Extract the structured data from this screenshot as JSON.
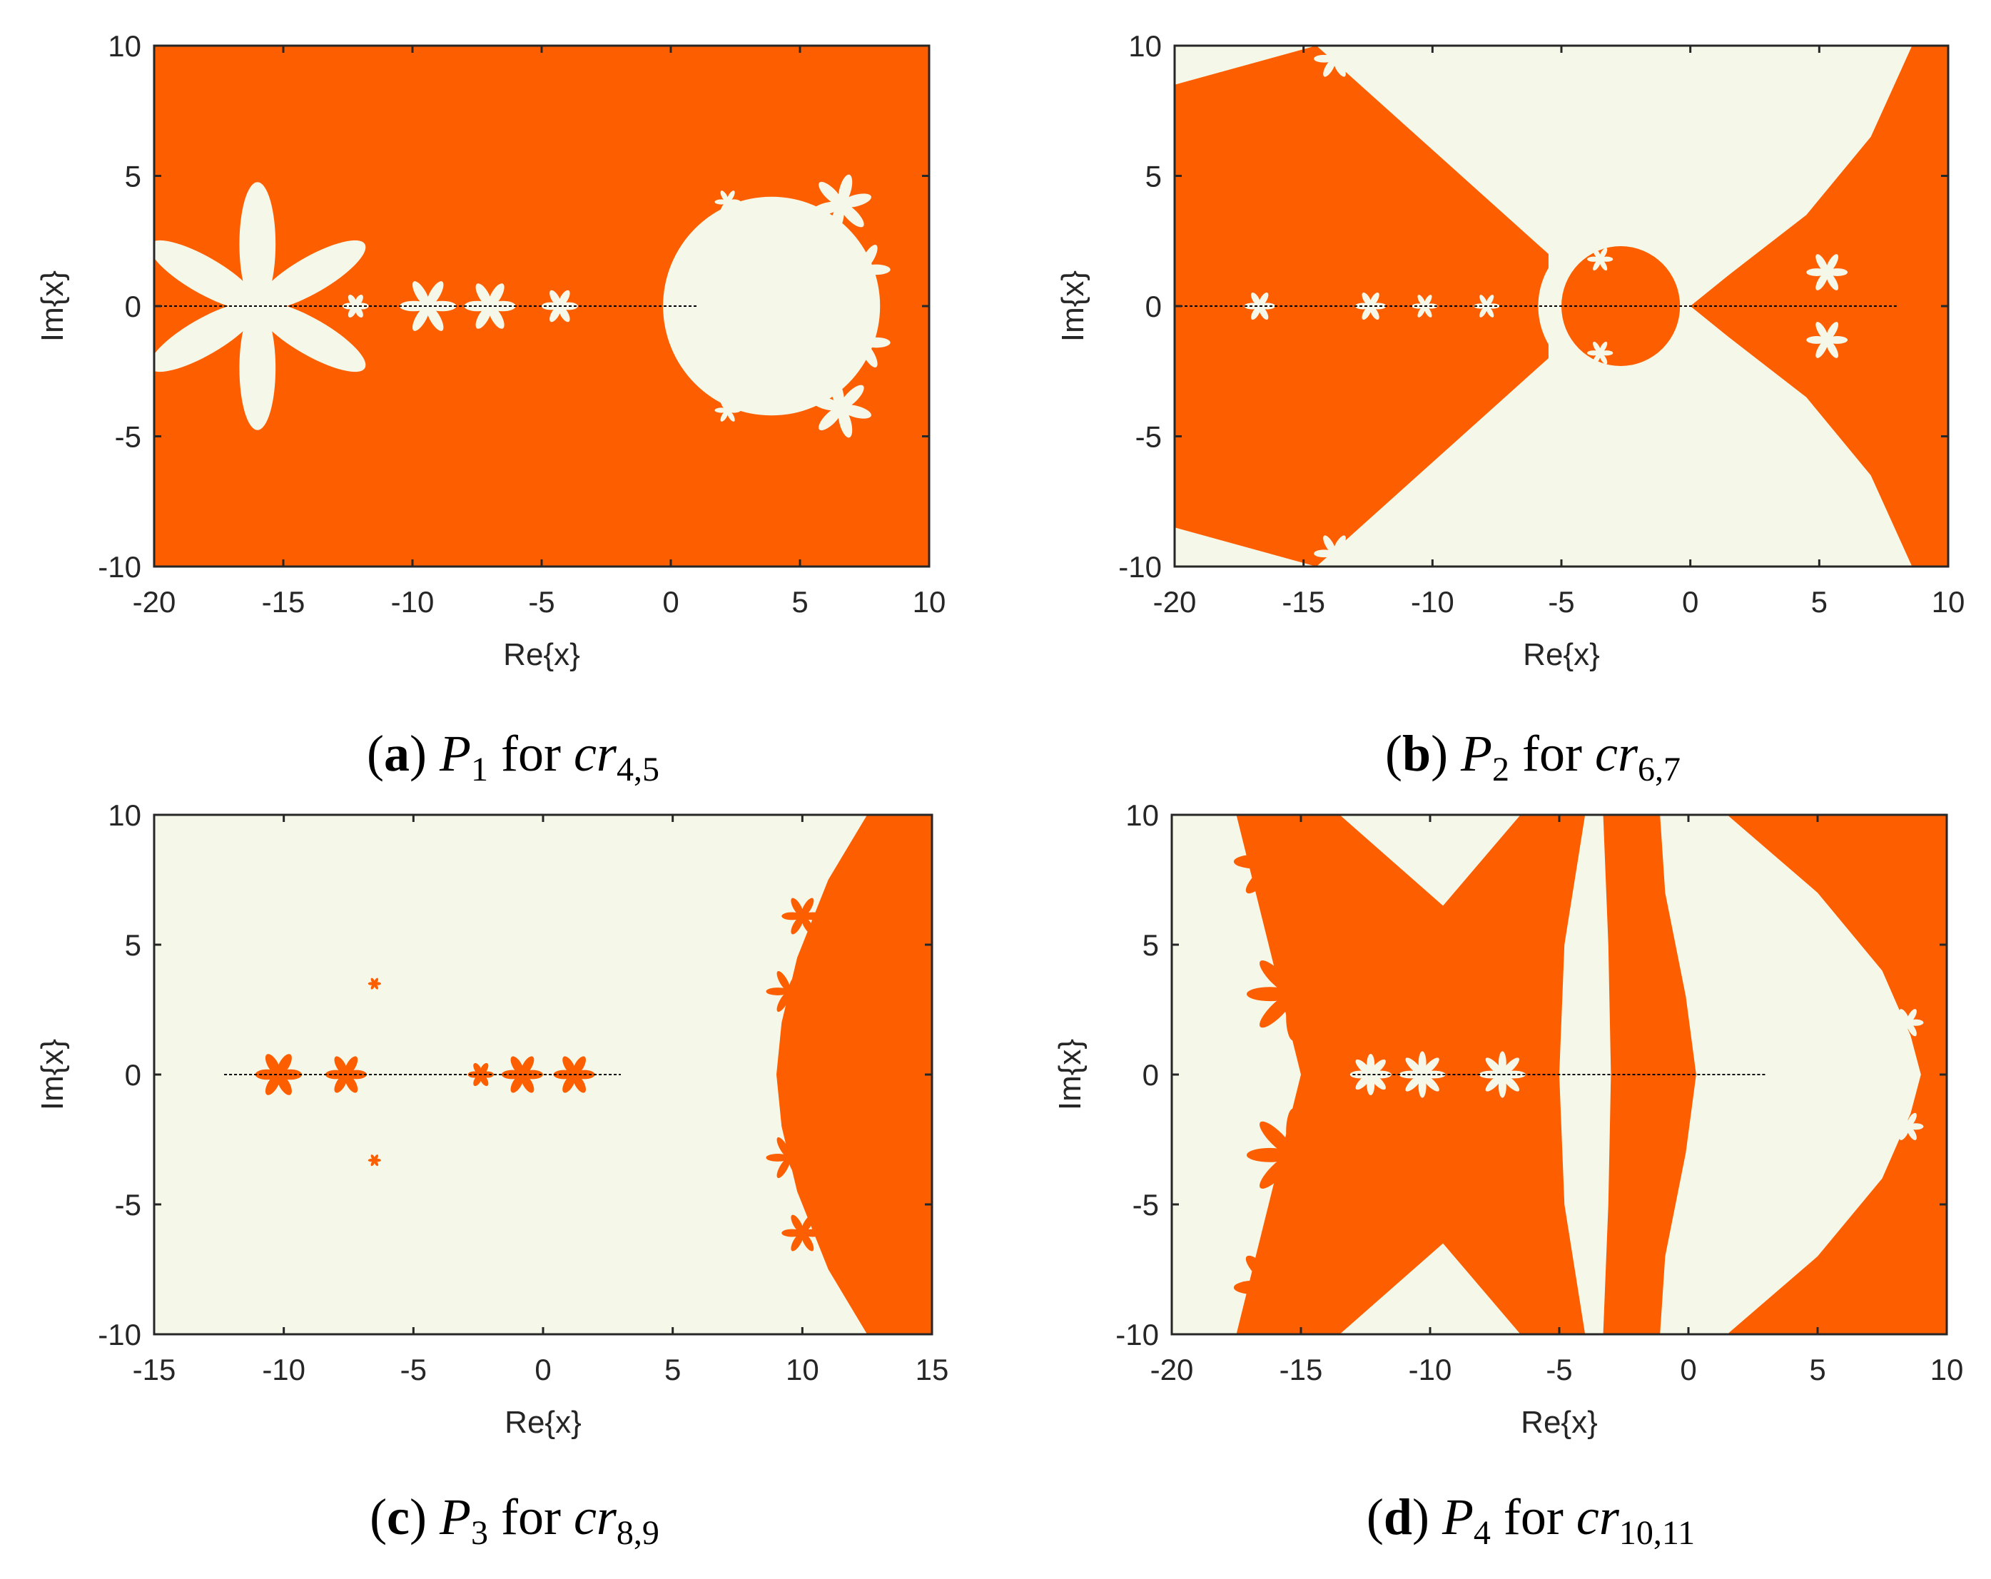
{
  "colors": {
    "orange": "#fd5e00",
    "cream": "#f5f8e8",
    "axis": "#262626"
  },
  "chart_data": [
    {
      "type": "heatmap",
      "id": "a",
      "caption": {
        "letter": "(a)",
        "poly": "P",
        "poly_sub": "1",
        "word": "for",
        "cr": "cr",
        "cr_sub": "4,5"
      },
      "xlabel": "Re{x}",
      "ylabel": "Im{x}",
      "xlim": [
        -20,
        10
      ],
      "ylim": [
        -10,
        10
      ],
      "xticks": [
        -20,
        -15,
        -10,
        -5,
        0,
        5,
        10
      ],
      "yticks": [
        -10,
        -5,
        0,
        5,
        10
      ],
      "background": "orange",
      "regions": [
        {
          "shape": "disk",
          "cx": 3.9,
          "cy": 0,
          "r": 4.2,
          "fill": "cream"
        },
        {
          "shape": "petals",
          "cx": -16,
          "cy": 0,
          "n": 6,
          "len": 4.8,
          "w": 1.4,
          "rot": 30,
          "fill": "cream"
        },
        {
          "shape": "petals",
          "cx": -9.4,
          "cy": 0,
          "n": 6,
          "len": 1.1,
          "w": 0.4,
          "rot": 0,
          "fill": "cream"
        },
        {
          "shape": "petals",
          "cx": -7,
          "cy": 0,
          "n": 6,
          "len": 1.0,
          "w": 0.4,
          "rot": 0,
          "fill": "cream"
        },
        {
          "shape": "petals",
          "cx": -4.3,
          "cy": 0,
          "n": 6,
          "len": 0.7,
          "w": 0.3,
          "rot": 0,
          "fill": "cream"
        },
        {
          "shape": "petals",
          "cx": -12.2,
          "cy": 0,
          "n": 6,
          "len": 0.5,
          "w": 0.25,
          "rot": 0,
          "fill": "cream"
        },
        {
          "shape": "petals",
          "cx": 6.6,
          "cy": 3.9,
          "n": 6,
          "len": 1.2,
          "w": 0.45,
          "rot": 15,
          "fill": "cream"
        },
        {
          "shape": "petals",
          "cx": 7.4,
          "cy": 1.4,
          "n": 6,
          "len": 1.1,
          "w": 0.4,
          "rot": 0,
          "fill": "cream"
        },
        {
          "shape": "petals",
          "cx": 7.4,
          "cy": -1.4,
          "n": 6,
          "len": 1.1,
          "w": 0.4,
          "rot": 0,
          "fill": "cream"
        },
        {
          "shape": "petals",
          "cx": 6.6,
          "cy": -3.9,
          "n": 6,
          "len": 1.2,
          "w": 0.45,
          "rot": -15,
          "fill": "cream"
        },
        {
          "shape": "petals",
          "cx": 2.2,
          "cy": 4.0,
          "n": 6,
          "len": 0.5,
          "w": 0.2,
          "rot": 0,
          "fill": "cream"
        },
        {
          "shape": "petals",
          "cx": 2.2,
          "cy": -4.0,
          "n": 6,
          "len": 0.5,
          "w": 0.2,
          "rot": 0,
          "fill": "cream"
        }
      ],
      "real_line": [
        -20,
        1
      ]
    },
    {
      "type": "heatmap",
      "id": "b",
      "caption": {
        "letter": "(b)",
        "poly": "P",
        "poly_sub": "2",
        "word": "for",
        "cr": "cr",
        "cr_sub": "6,7"
      },
      "xlabel": "Re{x}",
      "ylabel": "Im{x}",
      "xlim": [
        -20,
        10
      ],
      "ylim": [
        -10,
        10
      ],
      "xticks": [
        -20,
        -15,
        -10,
        -5,
        0,
        5,
        10
      ],
      "yticks": [
        -10,
        -5,
        0,
        5,
        10
      ],
      "background": "cream",
      "regions": [
        {
          "shape": "poly",
          "points": [
            [
              -20,
              8.5
            ],
            [
              -14.5,
              10
            ],
            [
              -5.5,
              2
            ],
            [
              -5.5,
              -2
            ],
            [
              -14.5,
              -10
            ],
            [
              -20,
              -8.5
            ]
          ],
          "fill": "orange"
        },
        {
          "shape": "poly",
          "points": [
            [
              8.6,
              10
            ],
            [
              10,
              10
            ],
            [
              10,
              -10
            ],
            [
              8.6,
              -10
            ],
            [
              7,
              -6.5
            ],
            [
              4.5,
              -3.5
            ],
            [
              1.5,
              -1.2
            ],
            [
              0,
              0
            ],
            [
              1.5,
              1.2
            ],
            [
              4.5,
              3.5
            ],
            [
              7,
              6.5
            ]
          ],
          "fill": "orange"
        },
        {
          "shape": "disk",
          "cx": -3,
          "cy": 0,
          "r": 2.9,
          "fill": "cream"
        },
        {
          "shape": "disk",
          "cx": -2.7,
          "cy": 0,
          "r": 2.3,
          "fill": "orange"
        },
        {
          "shape": "petals",
          "cx": -19,
          "cy": 6.9,
          "n": 6,
          "len": 0.8,
          "w": 0.3,
          "rot": 0,
          "fill": "orange"
        },
        {
          "shape": "petals",
          "cx": -19,
          "cy": -6.9,
          "n": 6,
          "len": 0.8,
          "w": 0.3,
          "rot": 0,
          "fill": "orange"
        },
        {
          "shape": "petals",
          "cx": -13.8,
          "cy": 9.5,
          "n": 6,
          "len": 0.8,
          "w": 0.3,
          "rot": 0,
          "fill": "cream"
        },
        {
          "shape": "petals",
          "cx": -13.8,
          "cy": -9.5,
          "n": 6,
          "len": 0.8,
          "w": 0.3,
          "rot": 0,
          "fill": "cream"
        },
        {
          "shape": "petals",
          "cx": 5.3,
          "cy": 1.3,
          "n": 6,
          "len": 0.8,
          "w": 0.3,
          "rot": 0,
          "fill": "cream"
        },
        {
          "shape": "petals",
          "cx": 5.3,
          "cy": -1.3,
          "n": 6,
          "len": 0.8,
          "w": 0.3,
          "rot": 0,
          "fill": "cream"
        },
        {
          "shape": "petals",
          "cx": -16.7,
          "cy": 0,
          "n": 6,
          "len": 0.6,
          "w": 0.25,
          "rot": 0,
          "fill": "cream"
        },
        {
          "shape": "petals",
          "cx": -12.4,
          "cy": 0,
          "n": 6,
          "len": 0.6,
          "w": 0.25,
          "rot": 0,
          "fill": "cream"
        },
        {
          "shape": "petals",
          "cx": -10.3,
          "cy": 0,
          "n": 6,
          "len": 0.5,
          "w": 0.2,
          "rot": 0,
          "fill": "cream"
        },
        {
          "shape": "petals",
          "cx": -7.9,
          "cy": 0,
          "n": 6,
          "len": 0.5,
          "w": 0.2,
          "rot": 0,
          "fill": "cream"
        },
        {
          "shape": "petals",
          "cx": -3.5,
          "cy": 1.8,
          "n": 6,
          "len": 0.5,
          "w": 0.2,
          "rot": 0,
          "fill": "cream"
        },
        {
          "shape": "petals",
          "cx": -3.5,
          "cy": -1.8,
          "n": 6,
          "len": 0.5,
          "w": 0.2,
          "rot": 0,
          "fill": "cream"
        }
      ],
      "real_line": [
        -20,
        8
      ]
    },
    {
      "type": "heatmap",
      "id": "c",
      "caption": {
        "letter": "(c)",
        "poly": "P",
        "poly_sub": "3",
        "word": "for",
        "cr": "cr",
        "cr_sub": "8,9"
      },
      "xlabel": "Re{x}",
      "ylabel": "Im{x}",
      "xlim": [
        -15,
        15
      ],
      "ylim": [
        -10,
        10
      ],
      "xticks": [
        -15,
        -10,
        -5,
        0,
        5,
        10,
        15
      ],
      "yticks": [
        -10,
        -5,
        0,
        5,
        10
      ],
      "background": "cream",
      "regions": [
        {
          "shape": "poly",
          "points": [
            [
              12.5,
              10
            ],
            [
              15,
              10
            ],
            [
              15,
              -10
            ],
            [
              12.5,
              -10
            ],
            [
              11,
              -7.5
            ],
            [
              9.8,
              -4.5
            ],
            [
              9.2,
              -2
            ],
            [
              9,
              0
            ],
            [
              9.2,
              2
            ],
            [
              9.8,
              4.5
            ],
            [
              11,
              7.5
            ]
          ],
          "fill": "orange"
        },
        {
          "shape": "petals",
          "cx": 10,
          "cy": 6.1,
          "n": 6,
          "len": 0.8,
          "w": 0.3,
          "rot": 0,
          "fill": "orange"
        },
        {
          "shape": "petals",
          "cx": 10,
          "cy": -6.1,
          "n": 6,
          "len": 0.8,
          "w": 0.3,
          "rot": 0,
          "fill": "orange"
        },
        {
          "shape": "petals",
          "cx": 9.5,
          "cy": 3.2,
          "n": 6,
          "len": 0.9,
          "w": 0.3,
          "rot": 0,
          "fill": "orange"
        },
        {
          "shape": "petals",
          "cx": 9.5,
          "cy": -3.2,
          "n": 6,
          "len": 0.9,
          "w": 0.3,
          "rot": 0,
          "fill": "orange"
        },
        {
          "shape": "petals",
          "cx": -10.2,
          "cy": 0,
          "n": 6,
          "len": 0.9,
          "w": 0.4,
          "rot": 0,
          "fill": "orange"
        },
        {
          "shape": "petals",
          "cx": -7.6,
          "cy": 0,
          "n": 6,
          "len": 0.8,
          "w": 0.35,
          "rot": 0,
          "fill": "orange"
        },
        {
          "shape": "petals",
          "cx": -2.4,
          "cy": 0,
          "n": 6,
          "len": 0.5,
          "w": 0.25,
          "rot": 0,
          "fill": "orange"
        },
        {
          "shape": "petals",
          "cx": -0.8,
          "cy": 0,
          "n": 6,
          "len": 0.8,
          "w": 0.35,
          "rot": 0,
          "fill": "orange"
        },
        {
          "shape": "petals",
          "cx": 1.2,
          "cy": 0,
          "n": 6,
          "len": 0.8,
          "w": 0.35,
          "rot": 0,
          "fill": "orange"
        },
        {
          "shape": "petals",
          "cx": -6.5,
          "cy": 3.5,
          "n": 6,
          "len": 0.25,
          "w": 0.12,
          "rot": 0,
          "fill": "orange"
        },
        {
          "shape": "petals",
          "cx": -6.5,
          "cy": -3.3,
          "n": 6,
          "len": 0.25,
          "w": 0.12,
          "rot": 0,
          "fill": "orange"
        }
      ],
      "real_line": [
        -12.3,
        3
      ]
    },
    {
      "type": "heatmap",
      "id": "d",
      "caption": {
        "letter": "(d)",
        "poly": "P",
        "poly_sub": "4",
        "word": "for",
        "cr": "cr",
        "cr_sub": "10,11"
      },
      "xlabel": "Re{x}",
      "ylabel": "Im{x}",
      "xlim": [
        -20,
        10
      ],
      "ylim": [
        -10,
        10
      ],
      "xticks": [
        -20,
        -15,
        -10,
        -5,
        0,
        5,
        10
      ],
      "yticks": [
        -10,
        -5,
        0,
        5,
        10
      ],
      "background": "cream",
      "regions": [
        {
          "shape": "poly",
          "points": [
            [
              -17.5,
              10
            ],
            [
              -13.5,
              10
            ],
            [
              -9.5,
              6.5
            ],
            [
              -6.5,
              10
            ],
            [
              -4,
              10
            ],
            [
              -4.8,
              5
            ],
            [
              -5,
              0
            ],
            [
              -4.8,
              -5
            ],
            [
              -4,
              -10
            ],
            [
              -6.5,
              -10
            ],
            [
              -9.5,
              -6.5
            ],
            [
              -13.5,
              -10
            ],
            [
              -17.5,
              -10
            ],
            [
              -16.5,
              -6
            ],
            [
              -15.5,
              -2
            ],
            [
              -15,
              0
            ],
            [
              -15.5,
              2
            ],
            [
              -16.5,
              6
            ]
          ],
          "fill": "orange"
        },
        {
          "shape": "poly",
          "points": [
            [
              -3.3,
              10
            ],
            [
              -2.9,
              10
            ],
            [
              -2.3,
              5
            ],
            [
              -1.8,
              0
            ],
            [
              -2.3,
              -5
            ],
            [
              -2.9,
              -10
            ],
            [
              -3.3,
              -10
            ],
            [
              -3.1,
              -5
            ],
            [
              -3.0,
              0
            ],
            [
              -3.1,
              5
            ]
          ],
          "fill": "orange"
        },
        {
          "shape": "poly",
          "points": [
            [
              -3.1,
              10
            ],
            [
              -1.1,
              10
            ],
            [
              -0.9,
              7
            ],
            [
              -0.1,
              3
            ],
            [
              0.3,
              0
            ],
            [
              -0.1,
              -3
            ],
            [
              -0.9,
              -7
            ],
            [
              -1.1,
              -10
            ],
            [
              -3.1,
              -10
            ],
            [
              -2.5,
              -5
            ],
            [
              -2.2,
              0
            ],
            [
              -2.5,
              5
            ]
          ],
          "fill": "orange"
        },
        {
          "shape": "poly",
          "points": [
            [
              1.5,
              10
            ],
            [
              10,
              10
            ],
            [
              10,
              -10
            ],
            [
              1.5,
              -10
            ],
            [
              5,
              -7
            ],
            [
              7.5,
              -4
            ],
            [
              8.6,
              -1.5
            ],
            [
              9,
              0
            ],
            [
              8.6,
              1.5
            ],
            [
              7.5,
              4
            ],
            [
              5,
              7
            ]
          ],
          "fill": "orange"
        },
        {
          "shape": "petals",
          "cx": -15.9,
          "cy": 8.2,
          "n": 8,
          "len": 1.7,
          "w": 0.55,
          "rot": 0,
          "fill": "orange"
        },
        {
          "shape": "petals",
          "cx": -15.3,
          "cy": 3.1,
          "n": 8,
          "len": 1.8,
          "w": 0.55,
          "rot": 0,
          "fill": "orange"
        },
        {
          "shape": "petals",
          "cx": -15.3,
          "cy": -3.1,
          "n": 8,
          "len": 1.8,
          "w": 0.55,
          "rot": 0,
          "fill": "orange"
        },
        {
          "shape": "petals",
          "cx": -15.9,
          "cy": -8.2,
          "n": 8,
          "len": 1.7,
          "w": 0.55,
          "rot": 0,
          "fill": "orange"
        },
        {
          "shape": "petals",
          "cx": -12.3,
          "cy": 0,
          "n": 8,
          "len": 0.8,
          "w": 0.3,
          "rot": 0,
          "fill": "cream"
        },
        {
          "shape": "petals",
          "cx": -10.3,
          "cy": 0,
          "n": 8,
          "len": 0.9,
          "w": 0.3,
          "rot": 0,
          "fill": "cream"
        },
        {
          "shape": "petals",
          "cx": -7.2,
          "cy": 0,
          "n": 8,
          "len": 0.9,
          "w": 0.3,
          "rot": 0,
          "fill": "cream"
        },
        {
          "shape": "petals",
          "cx": 8.5,
          "cy": 2.0,
          "n": 6,
          "len": 0.6,
          "w": 0.25,
          "rot": 0,
          "fill": "cream"
        },
        {
          "shape": "petals",
          "cx": 8.5,
          "cy": -2.0,
          "n": 6,
          "len": 0.6,
          "w": 0.25,
          "rot": 0,
          "fill": "cream"
        }
      ],
      "real_line": [
        -13,
        3
      ]
    }
  ]
}
